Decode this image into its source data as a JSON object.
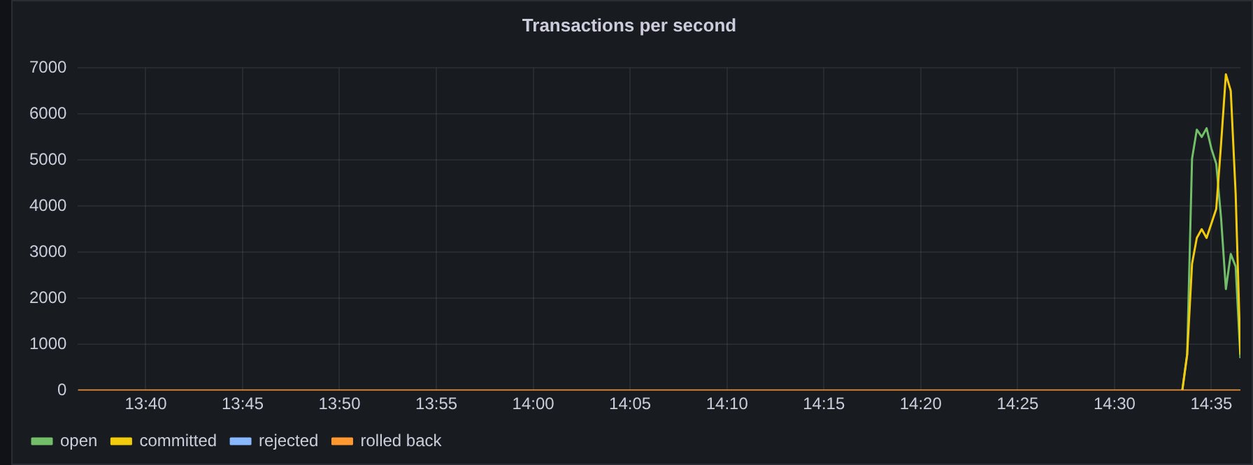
{
  "chart_data": {
    "type": "line",
    "title": "Transactions per second",
    "x": [
      14.5583,
      14.5625,
      14.5667,
      14.5708,
      14.575,
      14.5792,
      14.5833,
      14.5875,
      14.5917,
      14.5958,
      14.6,
      14.6042,
      14.6083
    ],
    "series": [
      {
        "name": "open",
        "color": "#73bf69",
        "values": [
          0,
          780,
          5030,
          5660,
          5500,
          5690,
          5250,
          4920,
          3730,
          2200,
          2960,
          2690,
          700
        ]
      },
      {
        "name": "committed",
        "color": "#f2cc0c",
        "values": [
          0,
          780,
          2750,
          3310,
          3500,
          3310,
          3620,
          3940,
          5360,
          6860,
          6500,
          4270,
          780
        ]
      },
      {
        "name": "rejected",
        "color": "#8ab8ff",
        "values": [
          null,
          null,
          null,
          null,
          null,
          null,
          null,
          null,
          null,
          null,
          null,
          null,
          null
        ]
      },
      {
        "name": "rolled back",
        "color": "#ff9830",
        "x": [
          13.6083,
          14.6083
        ],
        "values": [
          0,
          0
        ]
      }
    ],
    "xlim": [
      13.6083,
      14.6083
    ],
    "xticks": [
      {
        "value": 13.6667,
        "label": "13:40"
      },
      {
        "value": 13.75,
        "label": "13:45"
      },
      {
        "value": 13.8333,
        "label": "13:50"
      },
      {
        "value": 13.9167,
        "label": "13:55"
      },
      {
        "value": 14,
        "label": "14:00"
      },
      {
        "value": 14.0833,
        "label": "14:05"
      },
      {
        "value": 14.1667,
        "label": "14:10"
      },
      {
        "value": 14.25,
        "label": "14:15"
      },
      {
        "value": 14.3333,
        "label": "14:20"
      },
      {
        "value": 14.4167,
        "label": "14:25"
      },
      {
        "value": 14.5,
        "label": "14:30"
      },
      {
        "value": 14.5833,
        "label": "14:35"
      }
    ],
    "ylim": [
      0,
      7000
    ],
    "yticks": [
      0,
      1000,
      2000,
      3000,
      4000,
      5000,
      6000,
      7000
    ],
    "grid": true,
    "legend": "bottom left",
    "marker": "none",
    "line_style": "solid"
  }
}
